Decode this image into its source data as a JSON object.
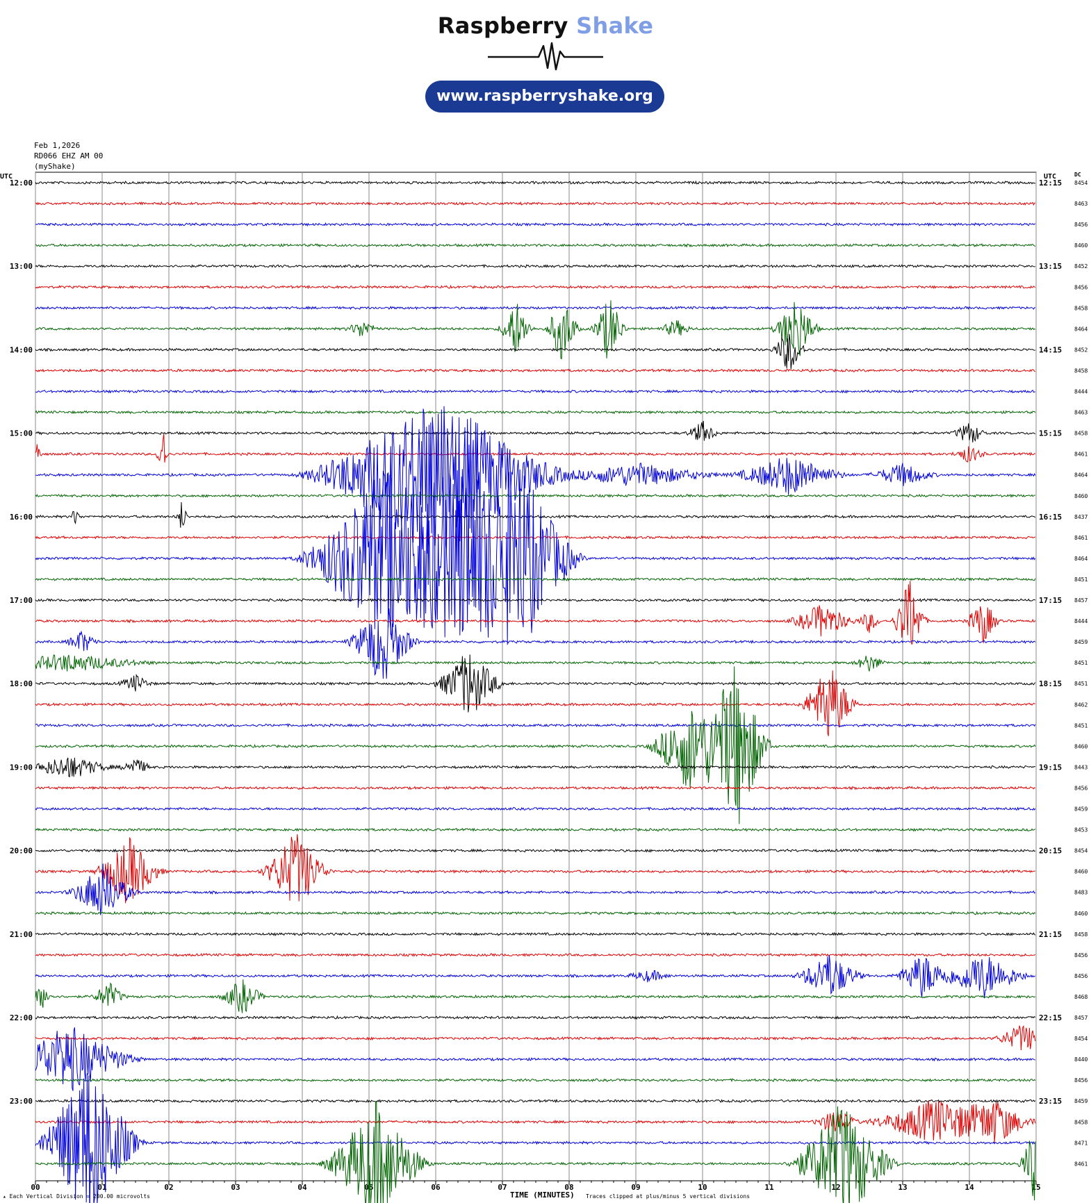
{
  "logo": {
    "brand_main": "Raspberry",
    "brand_accent": "Shake",
    "url": "www.raspberryshake.org",
    "pill_color": "#1b3a94",
    "accent_color": "#7f9ee6"
  },
  "meta": {
    "date": "Feb 1,2026",
    "station": "RD066 EHZ AM 00",
    "source": "(myShake)"
  },
  "headers": {
    "left_utc": "UTC",
    "right_utc": "UTC",
    "dc": "DC"
  },
  "footer": {
    "scale_note": "Each Vertical Division =  200.00 microvolts",
    "axis_title": "TIME (MINUTES)",
    "clip_note": "Traces clipped at plus/minus 5 vertical divisions"
  },
  "chart_data": {
    "type": "line",
    "title": "",
    "xlabel": "TIME (MINUTES)",
    "ylabel": "",
    "xlim": [
      0,
      15
    ],
    "x_ticks": [
      "00",
      "01",
      "02",
      "03",
      "04",
      "05",
      "06",
      "07",
      "08",
      "09",
      "10",
      "11",
      "12",
      "13",
      "14",
      "15"
    ],
    "grid": true,
    "colors_cycle": [
      "#000000",
      "#e00000",
      "#0000dd",
      "#006400"
    ],
    "left_labels": [
      "12:00",
      "13:00",
      "14:00",
      "15:00",
      "16:00",
      "17:00",
      "18:00",
      "19:00",
      "20:00",
      "21:00",
      "22:00",
      "23:00"
    ],
    "right_labels": [
      "12:15",
      "13:15",
      "14:15",
      "15:15",
      "16:15",
      "17:15",
      "18:15",
      "19:15",
      "20:15",
      "21:15",
      "22:15",
      "23:15"
    ],
    "dc_values": [
      "8454",
      "8463",
      "8456",
      "8460",
      "8452",
      "8456",
      "8458",
      "8464",
      "8452",
      "8458",
      "8444",
      "8463",
      "8458",
      "8461",
      "8464",
      "8460",
      "8437",
      "8461",
      "8464",
      "8451",
      "8457",
      "8444",
      "8459",
      "8451",
      "8451",
      "8462",
      "8451",
      "8460",
      "8443",
      "8456",
      "8459",
      "8453",
      "8454",
      "8460",
      "8483",
      "8460",
      "8458",
      "8456",
      "8456",
      "8468",
      "8457",
      "8454",
      "8440",
      "8456",
      "8459",
      "8458",
      "8471",
      "8461"
    ],
    "events": [
      {
        "trace": 7,
        "minute": 4.9,
        "amp": 0.3,
        "dur": 0.3
      },
      {
        "trace": 7,
        "minute": 7.2,
        "amp": 1.0,
        "dur": 0.3
      },
      {
        "trace": 7,
        "minute": 7.9,
        "amp": 1.2,
        "dur": 0.3
      },
      {
        "trace": 7,
        "minute": 8.6,
        "amp": 1.2,
        "dur": 0.3
      },
      {
        "trace": 7,
        "minute": 9.6,
        "amp": 0.3,
        "dur": 0.3
      },
      {
        "trace": 7,
        "minute": 11.4,
        "amp": 1.2,
        "dur": 0.4
      },
      {
        "trace": 8,
        "minute": 11.3,
        "amp": 0.8,
        "dur": 0.3
      },
      {
        "trace": 12,
        "minute": 10.0,
        "amp": 0.4,
        "dur": 0.3
      },
      {
        "trace": 12,
        "minute": 14.0,
        "amp": 0.4,
        "dur": 0.3
      },
      {
        "trace": 13,
        "minute": 1.9,
        "amp": 1.2,
        "dur": 0.1
      },
      {
        "trace": 13,
        "minute": 0.0,
        "amp": 1.0,
        "dur": 0.1
      },
      {
        "trace": 13,
        "minute": 14.0,
        "amp": 0.3,
        "dur": 0.3
      },
      {
        "trace": 14,
        "minute": 6.0,
        "amp": 3.0,
        "dur": 2.2
      },
      {
        "trace": 14,
        "minute": 9.0,
        "amp": 0.4,
        "dur": 1.5
      },
      {
        "trace": 14,
        "minute": 11.3,
        "amp": 0.7,
        "dur": 1.0
      },
      {
        "trace": 14,
        "minute": 13.0,
        "amp": 0.4,
        "dur": 0.6
      },
      {
        "trace": 16,
        "minute": 2.2,
        "amp": 0.6,
        "dur": 0.1
      },
      {
        "trace": 16,
        "minute": 0.6,
        "amp": 0.3,
        "dur": 0.1
      },
      {
        "trace": 18,
        "minute": 5.2,
        "amp": 3.2,
        "dur": 1.4
      },
      {
        "trace": 18,
        "minute": 6.4,
        "amp": 3.2,
        "dur": 1.2
      },
      {
        "trace": 18,
        "minute": 7.3,
        "amp": 3.0,
        "dur": 1.0
      },
      {
        "trace": 21,
        "minute": 11.8,
        "amp": 0.6,
        "dur": 0.6
      },
      {
        "trace": 21,
        "minute": 12.5,
        "amp": 0.4,
        "dur": 0.2
      },
      {
        "trace": 21,
        "minute": 13.1,
        "amp": 1.5,
        "dur": 0.3
      },
      {
        "trace": 21,
        "minute": 14.2,
        "amp": 0.8,
        "dur": 0.3
      },
      {
        "trace": 22,
        "minute": 5.2,
        "amp": 1.5,
        "dur": 0.6
      },
      {
        "trace": 22,
        "minute": 0.7,
        "amp": 0.4,
        "dur": 0.3
      },
      {
        "trace": 23,
        "minute": 0.5,
        "amp": 0.3,
        "dur": 1.5
      },
      {
        "trace": 23,
        "minute": 12.5,
        "amp": 0.3,
        "dur": 0.3
      },
      {
        "trace": 24,
        "minute": 6.5,
        "amp": 1.2,
        "dur": 0.6
      },
      {
        "trace": 24,
        "minute": 1.5,
        "amp": 0.3,
        "dur": 0.3
      },
      {
        "trace": 25,
        "minute": 11.9,
        "amp": 1.4,
        "dur": 0.5
      },
      {
        "trace": 27,
        "minute": 9.8,
        "amp": 1.6,
        "dur": 0.7
      },
      {
        "trace": 27,
        "minute": 10.5,
        "amp": 3.0,
        "dur": 0.6
      },
      {
        "trace": 28,
        "minute": 0.5,
        "amp": 0.4,
        "dur": 0.8
      },
      {
        "trace": 28,
        "minute": 1.5,
        "amp": 0.3,
        "dur": 0.3
      },
      {
        "trace": 33,
        "minute": 1.4,
        "amp": 1.2,
        "dur": 0.6
      },
      {
        "trace": 33,
        "minute": 3.9,
        "amp": 1.4,
        "dur": 0.6
      },
      {
        "trace": 34,
        "minute": 1.0,
        "amp": 1.0,
        "dur": 0.6
      },
      {
        "trace": 38,
        "minute": 11.9,
        "amp": 0.8,
        "dur": 0.6
      },
      {
        "trace": 38,
        "minute": 13.3,
        "amp": 0.8,
        "dur": 0.5
      },
      {
        "trace": 38,
        "minute": 14.2,
        "amp": 0.8,
        "dur": 0.8
      },
      {
        "trace": 38,
        "minute": 9.2,
        "amp": 0.2,
        "dur": 0.4
      },
      {
        "trace": 39,
        "minute": 3.1,
        "amp": 0.6,
        "dur": 0.4
      },
      {
        "trace": 39,
        "minute": 1.1,
        "amp": 0.5,
        "dur": 0.3
      },
      {
        "trace": 39,
        "minute": 0.1,
        "amp": 0.4,
        "dur": 0.2
      },
      {
        "trace": 41,
        "minute": 14.8,
        "amp": 0.5,
        "dur": 0.5
      },
      {
        "trace": 42,
        "minute": 0.5,
        "amp": 1.2,
        "dur": 1.2
      },
      {
        "trace": 45,
        "minute": 12.0,
        "amp": 0.5,
        "dur": 0.4
      },
      {
        "trace": 45,
        "minute": 13.5,
        "amp": 0.8,
        "dur": 1.2
      },
      {
        "trace": 45,
        "minute": 14.4,
        "amp": 0.7,
        "dur": 0.7
      },
      {
        "trace": 46,
        "minute": 0.8,
        "amp": 3.0,
        "dur": 0.9
      },
      {
        "trace": 47,
        "minute": 5.1,
        "amp": 2.2,
        "dur": 0.9
      },
      {
        "trace": 47,
        "minute": 12.1,
        "amp": 2.2,
        "dur": 0.9
      },
      {
        "trace": 47,
        "minute": 15.0,
        "amp": 1.5,
        "dur": 0.3
      }
    ]
  }
}
